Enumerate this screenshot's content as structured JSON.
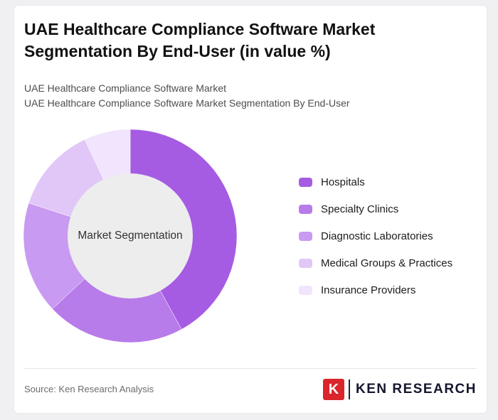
{
  "page": {
    "background_color": "#f0f0f2",
    "card_color": "#ffffff"
  },
  "header": {
    "title": "UAE Healthcare Compliance Software Market Segmentation By End-User (in value %)",
    "subtitle_line1": "UAE Healthcare Compliance Software Market",
    "subtitle_line2": "UAE Healthcare Compliance Software Market Segmentation By End-User"
  },
  "chart_data": {
    "type": "pie",
    "subtype": "donut",
    "title": "UAE Healthcare Compliance Software Market Segmentation By End-User (in value %)",
    "center_label": "Market Segmentation",
    "categories": [
      "Hospitals",
      "Specialty Clinics",
      "Diagnostic Laboratories",
      "Medical Groups & Practices",
      "Insurance Providers"
    ],
    "values": [
      42,
      21,
      17,
      13,
      7
    ],
    "unit": "value %",
    "colors": [
      "#a55ce3",
      "#b87bea",
      "#c99af1",
      "#e1c7f8",
      "#f1e4fd"
    ],
    "start_angle_deg": -90,
    "direction": "clockwise",
    "legend_position": "right",
    "donut_hole_color": "#ededee",
    "slice_border_color": "#ffffff"
  },
  "footer": {
    "source": "Source: Ken Research Analysis",
    "logo": {
      "letter": "K",
      "brand": "KEN RESEARCH",
      "accent_color": "#d9252b"
    }
  }
}
